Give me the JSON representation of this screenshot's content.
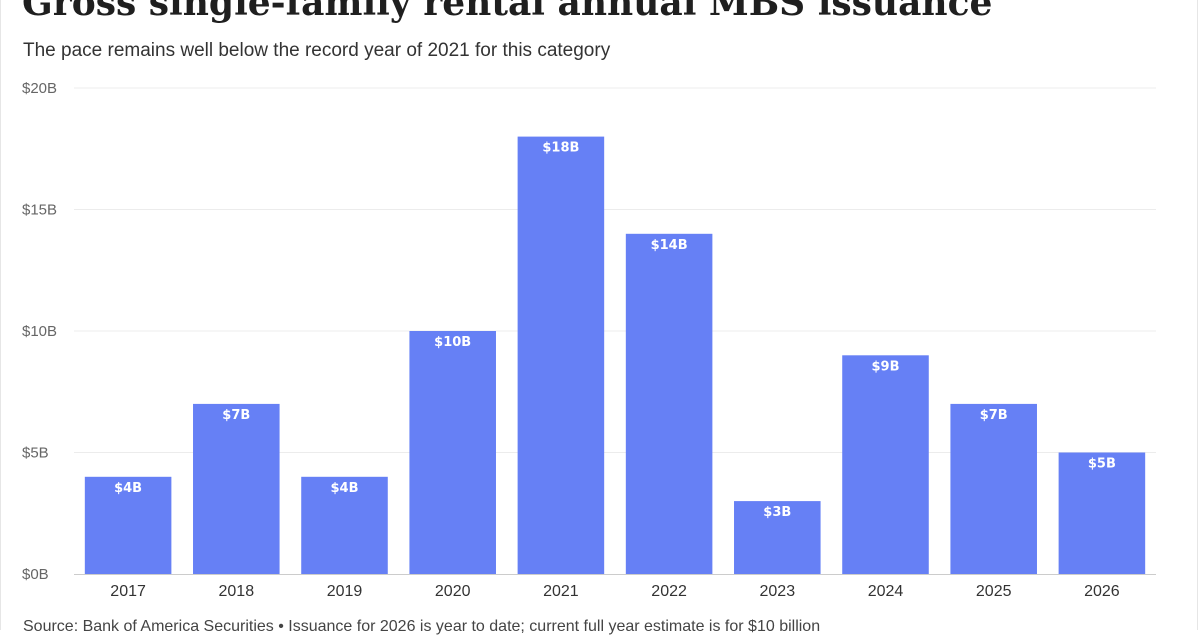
{
  "header": {
    "title": "Gross single-family rental annual MBS issuance",
    "subtitle": "The pace remains well below the record year of 2021 for this category"
  },
  "footer": {
    "source": "Source: Bank of America Securities • Issuance for 2026 is year to date; current full year estimate is for $10 billion"
  },
  "colors": {
    "bar": "#6680f5",
    "grid": "#ececec",
    "axis": "#cccccc"
  },
  "chart_data": {
    "type": "bar",
    "title": "Gross single-family rental annual MBS issuance",
    "subtitle": "The pace remains well below the record year of 2021 for this category",
    "xlabel": "",
    "ylabel": "",
    "categories": [
      "2017",
      "2018",
      "2019",
      "2020",
      "2021",
      "2022",
      "2023",
      "2024",
      "2025",
      "2026"
    ],
    "values": [
      4,
      7,
      4,
      10,
      18,
      14,
      3,
      9,
      7,
      5
    ],
    "value_labels": [
      "$4B",
      "$7B",
      "$4B",
      "$10B",
      "$18B",
      "$14B",
      "$3B",
      "$9B",
      "$7B",
      "$5B"
    ],
    "ylim": [
      0,
      20
    ],
    "yticks": [
      0,
      5,
      10,
      15,
      20
    ],
    "ytick_labels": [
      "$0B",
      "$5B",
      "$10B",
      "$15B",
      "$20B"
    ],
    "grid": true,
    "legend": "none"
  }
}
